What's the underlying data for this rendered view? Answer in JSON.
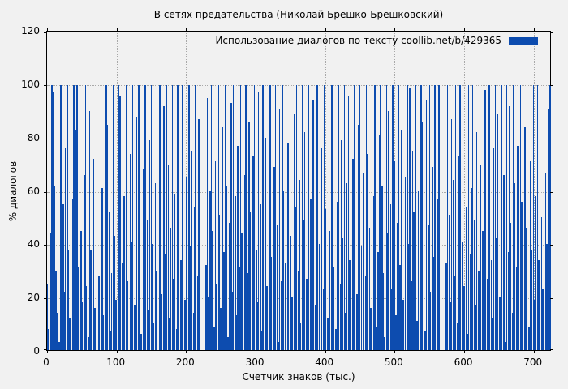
{
  "colors": {
    "background": "#f1f1f1",
    "bar": "#0d4caf",
    "grid": "#a8a8a8",
    "border": "#000000",
    "text": "#000000"
  },
  "legend": {
    "label": "Использование диалогов по тексту  coollib.net/b/429365"
  },
  "chart_data": {
    "type": "bar",
    "style": "impulses",
    "title": "В сетях предательства (Николай Брешко-Брешковский)",
    "xlabel": "Счетчик знаков (тыс.)",
    "ylabel": "% диалогов",
    "legend_label": "Использование диалогов по тексту  coollib.net/b/429365",
    "legend_position": "top-right",
    "grid": true,
    "xlim": [
      0,
      726
    ],
    "ylim": [
      0,
      120
    ],
    "x_ticks": [
      0,
      100,
      200,
      300,
      400,
      500,
      600,
      700
    ],
    "y_ticks": [
      0,
      20,
      40,
      60,
      80,
      100,
      120
    ],
    "x_start": 0,
    "x_step": 2,
    "values": [
      25,
      8,
      44,
      100,
      97,
      62,
      30,
      14,
      3,
      100,
      100,
      55,
      22,
      76,
      100,
      38,
      12,
      0,
      57,
      100,
      83,
      100,
      31,
      9,
      45,
      18,
      66,
      100,
      24,
      5,
      90,
      38,
      100,
      72,
      16,
      47,
      0,
      28,
      100,
      61,
      13,
      37,
      100,
      85,
      52,
      7,
      29,
      100,
      43,
      19,
      64,
      100,
      96,
      33,
      11,
      58,
      100,
      26,
      0,
      74,
      41,
      100,
      17,
      53,
      88,
      100,
      35,
      6,
      68,
      23,
      100,
      49,
      15,
      79,
      100,
      40,
      10,
      63,
      30,
      0,
      100,
      56,
      21,
      92,
      36,
      100,
      70,
      12,
      46,
      100,
      27,
      59,
      8,
      100,
      81,
      34,
      100,
      50,
      19,
      65,
      4,
      100,
      39,
      75,
      14,
      54,
      100,
      28,
      87,
      42,
      0,
      0,
      100,
      32,
      95,
      20,
      60,
      100,
      45,
      9,
      71,
      25,
      100,
      51,
      16,
      84,
      37,
      100,
      62,
      5,
      48,
      93,
      22,
      100,
      58,
      13,
      77,
      31,
      100,
      44,
      0,
      66,
      100,
      29,
      86,
      52,
      11,
      73,
      100,
      38,
      18,
      97,
      55,
      7,
      100,
      41,
      80,
      24,
      59,
      100,
      35,
      15,
      69,
      100,
      47,
      3,
      91,
      26,
      100,
      60,
      33,
      0,
      78,
      100,
      43,
      20,
      89,
      54,
      100,
      30,
      64,
      10,
      100,
      49,
      82,
      27,
      6,
      100,
      57,
      36,
      94,
      17,
      70,
      100,
      40,
      0,
      76,
      23,
      100,
      53,
      12,
      88,
      45,
      100,
      68,
      31,
      8,
      56,
      100,
      25,
      79,
      42,
      100,
      14,
      63,
      96,
      34,
      4,
      72,
      100,
      50,
      21,
      85,
      100,
      39,
      0,
      67,
      28,
      100,
      74,
      46,
      16,
      92,
      58,
      100,
      9,
      37,
      81,
      100,
      62,
      29,
      5,
      100,
      44,
      90,
      55,
      23,
      100,
      71,
      13,
      48,
      100,
      32,
      83,
      19,
      0,
      65,
      100,
      40,
      99,
      26,
      75,
      52,
      100,
      11,
      60,
      38,
      100,
      86,
      30,
      7,
      94,
      47,
      100,
      22,
      69,
      35,
      100,
      15,
      57,
      100,
      43,
      0,
      0,
      78,
      33,
      100,
      51,
      18,
      87,
      64,
      28,
      100,
      10,
      73,
      100,
      41,
      95,
      24,
      54,
      6,
      100,
      36,
      61,
      100,
      49,
      17,
      82,
      30,
      100,
      70,
      45,
      0,
      98,
      27,
      59,
      100,
      34,
      12,
      76,
      100,
      42,
      89,
      20,
      53,
      100,
      66,
      3,
      100,
      37,
      92,
      48,
      14,
      100,
      63,
      31,
      77,
      0,
      100,
      56,
      25,
      84,
      46,
      100,
      9,
      71,
      38,
      100,
      19,
      58,
      100,
      34,
      96,
      50,
      23,
      100,
      67,
      40,
      91,
      100
    ]
  }
}
